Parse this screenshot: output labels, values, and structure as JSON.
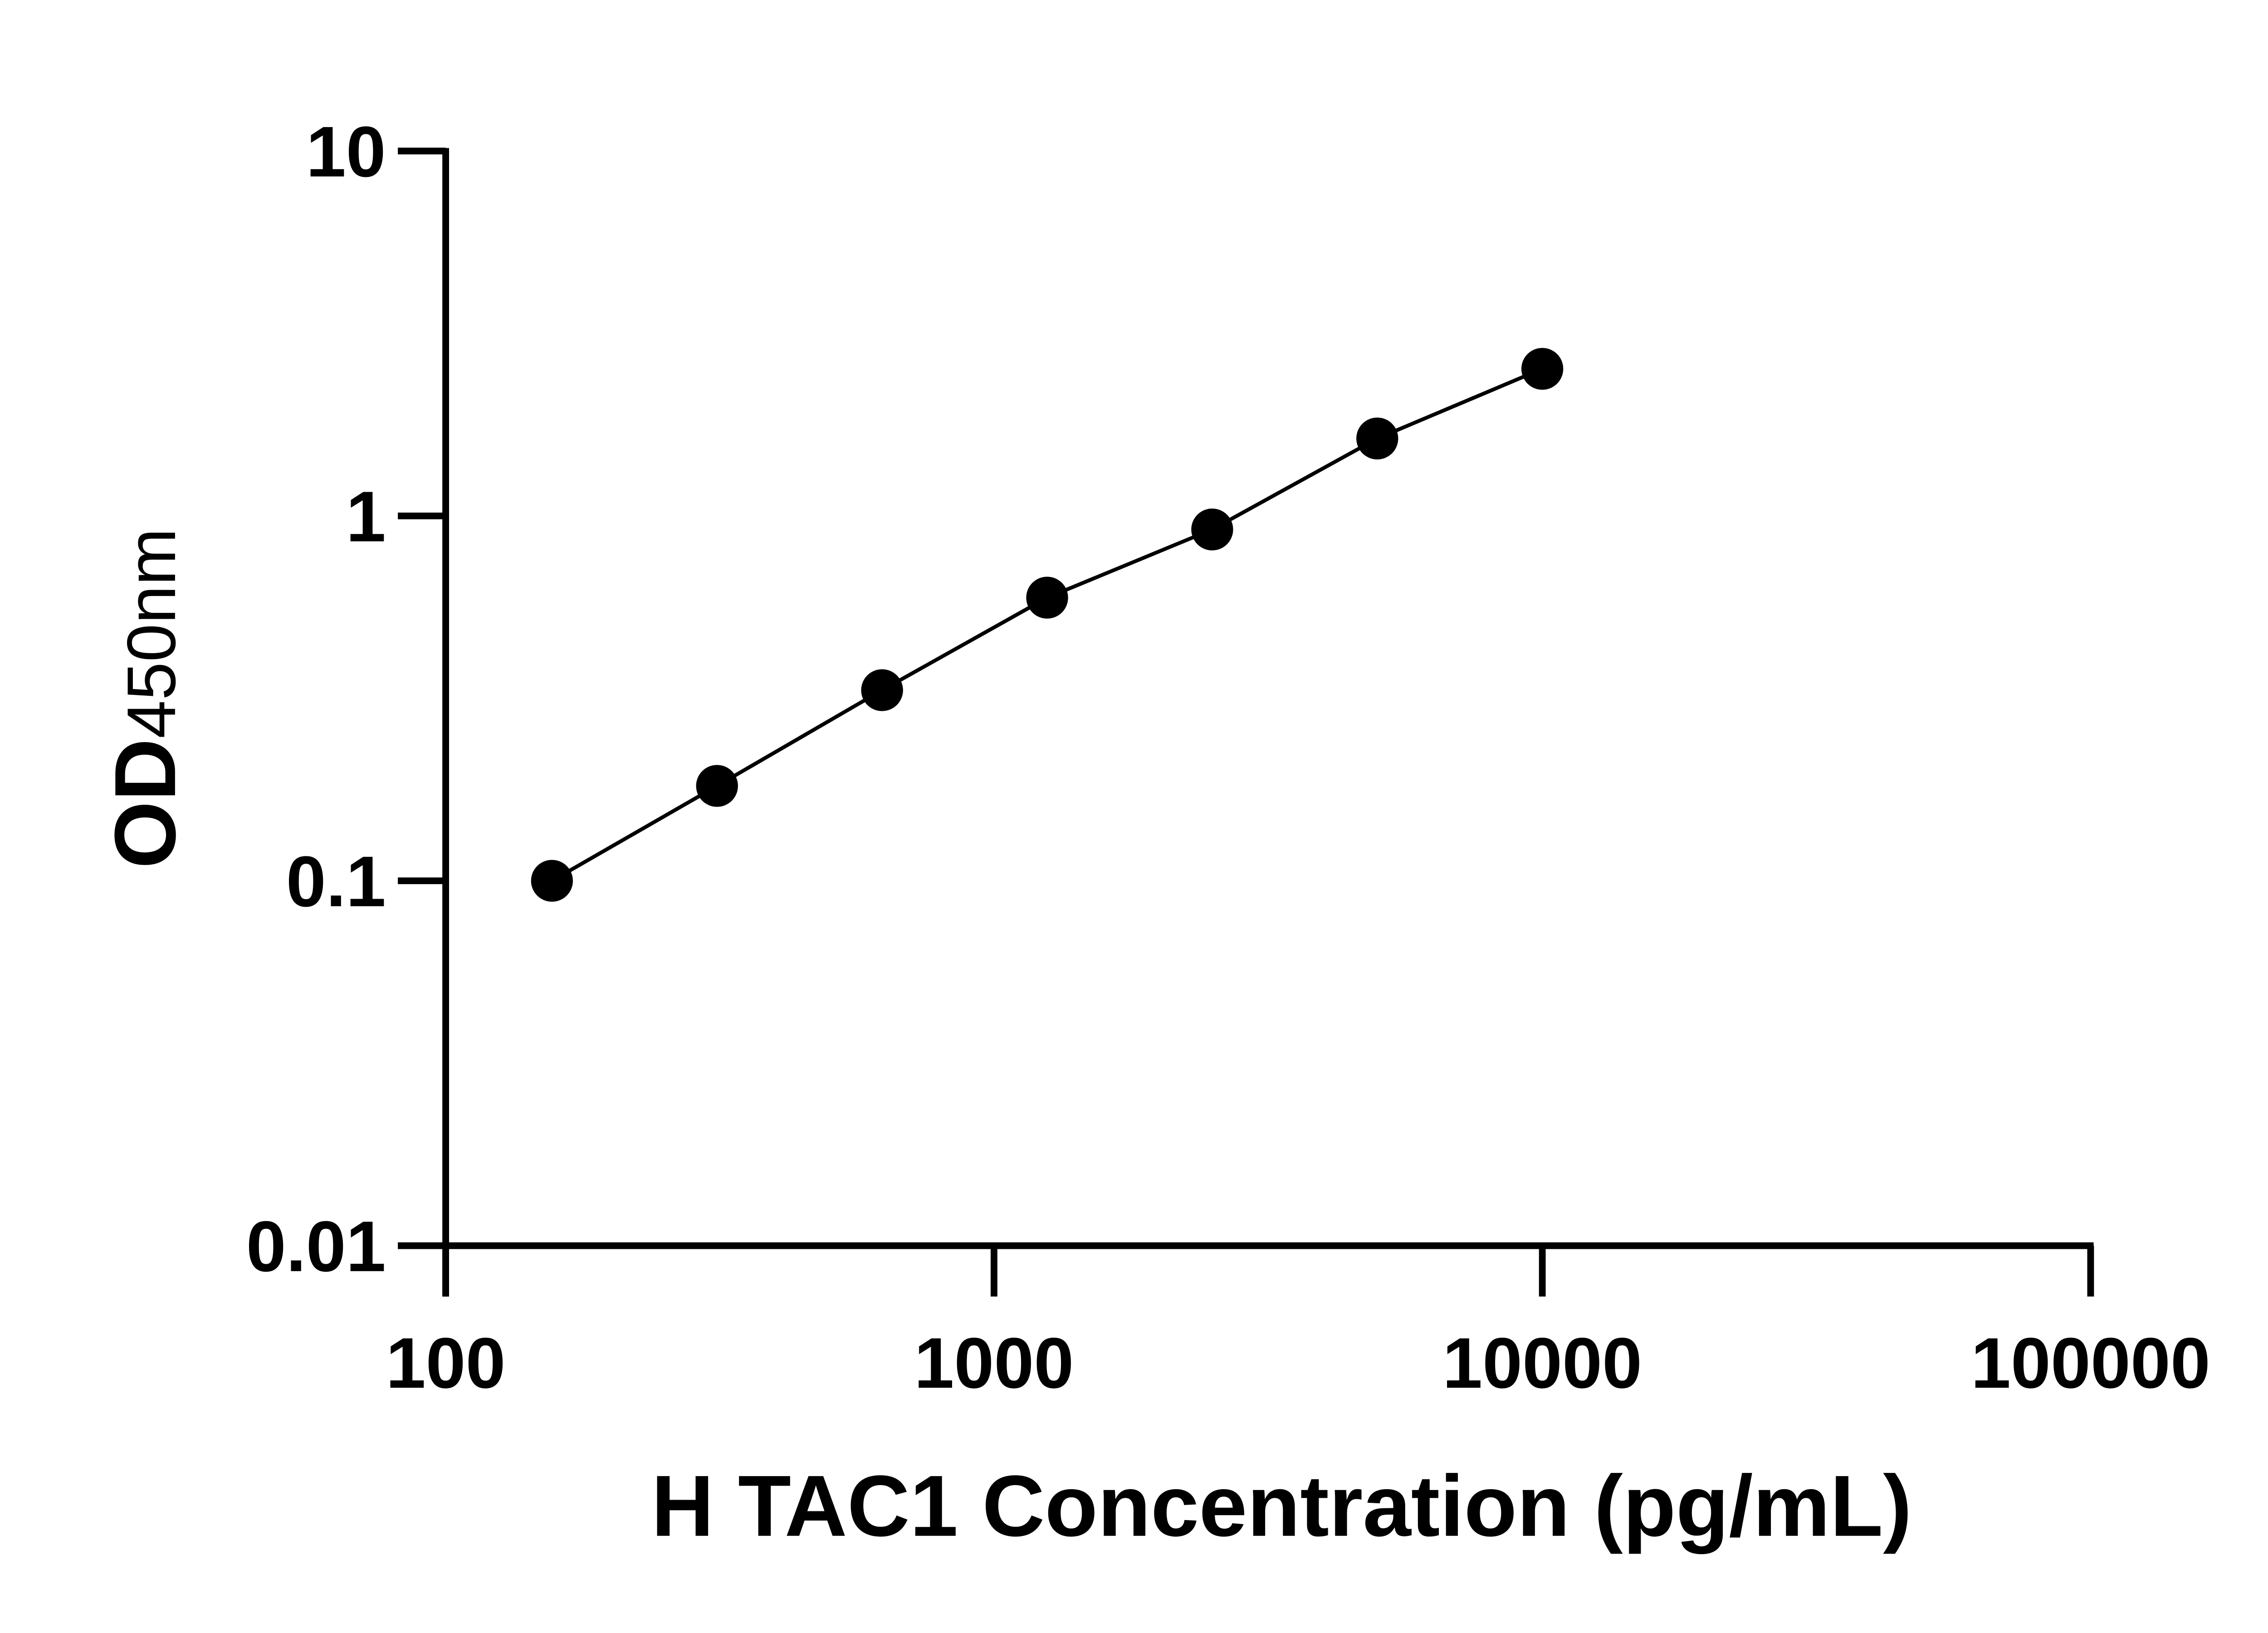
{
  "chart_data": {
    "type": "line",
    "title": "",
    "xlabel": "H TAC1 Concentration (pg/mL)",
    "ylabel": {
      "main": "OD",
      "sub": "450nm"
    },
    "x_scale": "log",
    "y_scale": "log",
    "xlim": [
      100,
      100000
    ],
    "ylim": [
      0.01,
      10
    ],
    "x_ticks": [
      "100",
      "1000",
      "10000",
      "100000"
    ],
    "y_ticks": [
      "0.01",
      "0.1",
      "1",
      "10"
    ],
    "grid": false,
    "markers": "filled-circle",
    "color": "#000000",
    "series": [
      {
        "x": [
          156.25,
          312.5,
          625,
          1250,
          2500,
          5000,
          10000
        ],
        "y": [
          0.1,
          0.182,
          0.333,
          0.597,
          0.918,
          1.63,
          2.53
        ]
      }
    ]
  }
}
